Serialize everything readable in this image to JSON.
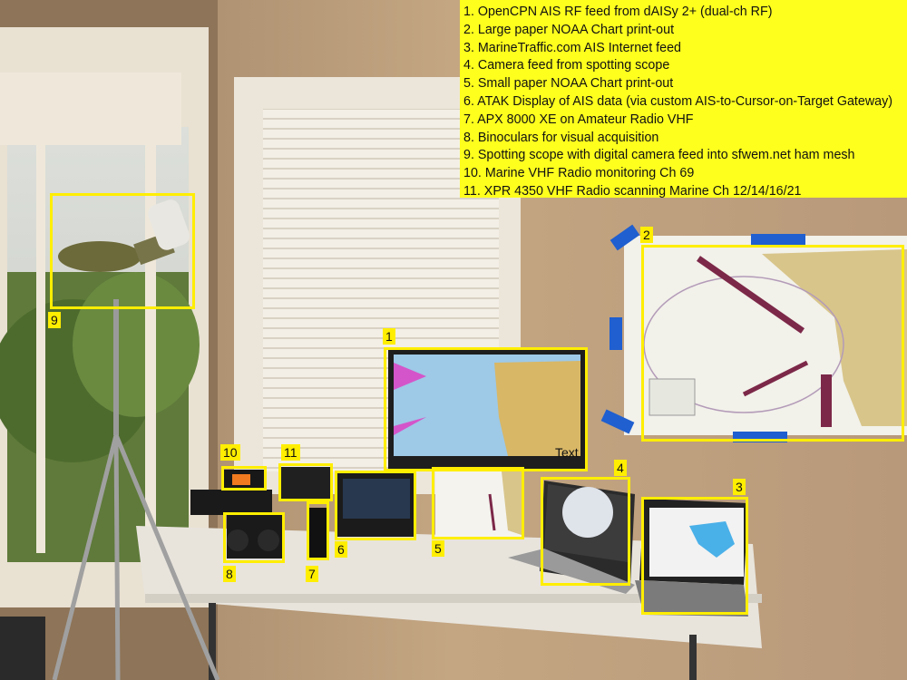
{
  "legend": {
    "items": [
      "1. OpenCPN AIS RF feed from dAISy 2+ (dual-ch RF)",
      "2. Large paper NOAA Chart print-out",
      "3. MarineTraffic.com AIS Internet feed",
      "4. Camera feed from spotting scope",
      "5. Small paper NOAA Chart print-out",
      "6. ATAK Display of AIS data (via custom AIS-to-Cursor-on-Target Gateway)",
      "7. APX 8000 XE on Amateur Radio VHF",
      "8. Binoculars for visual acquisition",
      "9. Spotting scope with digital camera feed into sfwem.net ham mesh",
      "10. Marine VHF Radio monitoring Ch 69",
      "11. XPR 4350 VHF Radio scanning Marine Ch 12/14/16/21"
    ]
  },
  "callouts": {
    "c1": "1",
    "c2": "2",
    "c3": "3",
    "c4": "4",
    "c5": "5",
    "c6": "6",
    "c7": "7",
    "c8": "8",
    "c9": "9",
    "c10": "10",
    "c11": "11"
  },
  "monitor_overlay_text": "Text",
  "colors": {
    "highlight": "#ffee00",
    "legend_bg": "#ffff1e",
    "wall": "#b89a76",
    "tape": "#1f5fd0"
  }
}
